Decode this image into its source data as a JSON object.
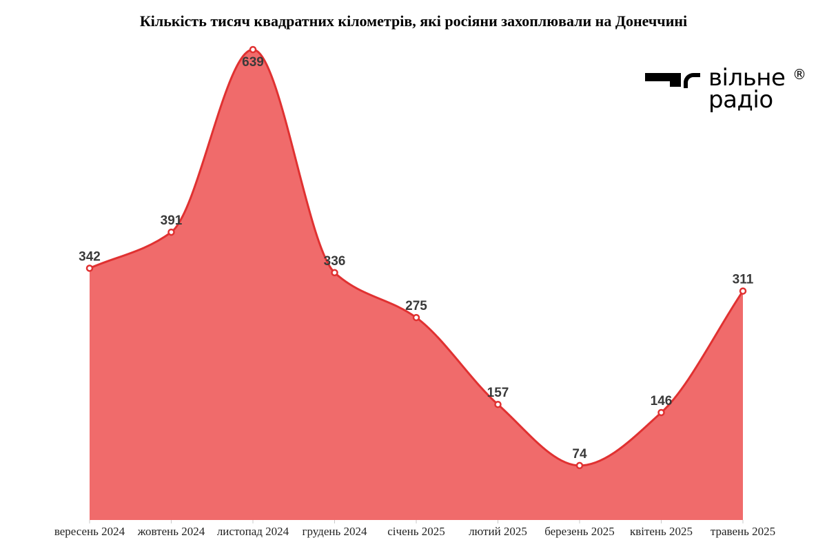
{
  "chart_data": {
    "type": "area",
    "title": "Кількість тисяч квадратних кілометрів, які росіяни захоплювали на Донеччині",
    "categories": [
      "вересень 2024",
      "жовтень 2024",
      "листопад 2024",
      "грудень 2024",
      "січень 2025",
      "лютий 2025",
      "березень 2025",
      "квітень 2025",
      "травень 2025"
    ],
    "values": [
      342,
      391,
      639,
      336,
      275,
      157,
      74,
      146,
      311
    ],
    "value_labels": [
      "342",
      "391",
      "639",
      "336",
      "275",
      "157",
      "74",
      "146",
      "311"
    ],
    "xlabel": "",
    "ylabel": "",
    "ylim": [
      0,
      639
    ],
    "grid": false,
    "fill_color": "#f06b6b",
    "line_color": "#e03131",
    "marker_fill": "#ffffff"
  },
  "logo": {
    "line1": "вільне",
    "line2": "радіо",
    "mark": "®"
  }
}
